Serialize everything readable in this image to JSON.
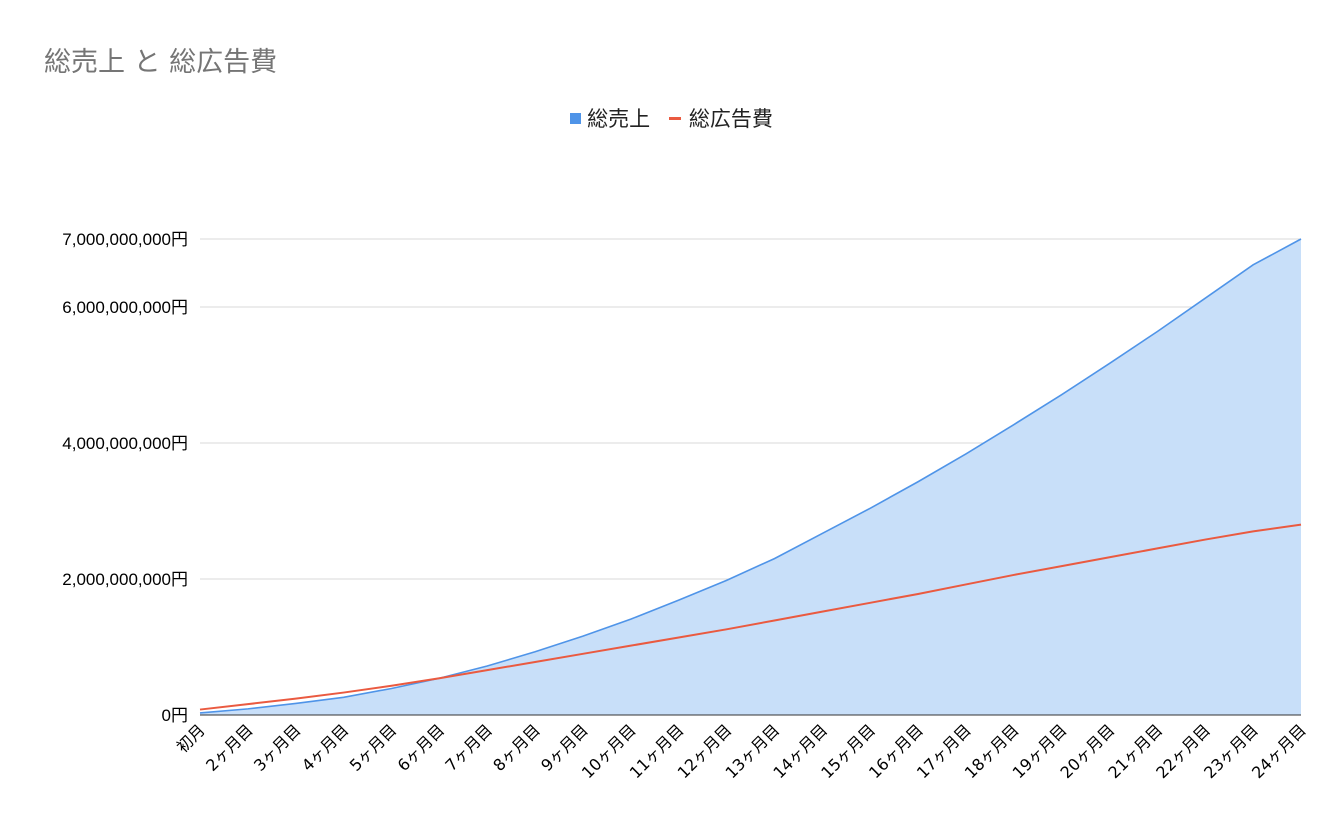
{
  "chart_data": {
    "type": "area",
    "title": "総売上 と 総広告費",
    "xlabel": "",
    "ylabel": "",
    "categories": [
      "初月",
      "2ヶ月目",
      "3ヶ月目",
      "4ヶ月目",
      "5ヶ月目",
      "6ヶ月目",
      "7ヶ月目",
      "8ヶ月目",
      "9ヶ月目",
      "10ヶ月目",
      "11ヶ月目",
      "12ヶ月目",
      "13ヶ月目",
      "14ヶ月目",
      "15ヶ月目",
      "16ヶ月目",
      "17ヶ月目",
      "18ヶ月目",
      "19ヶ月目",
      "20ヶ月目",
      "21ヶ月目",
      "22ヶ月目",
      "23ヶ月目",
      "24ヶ月目"
    ],
    "series": [
      {
        "name": "総売上",
        "type": "area",
        "color": "#4f94e8",
        "fill": "#c8dff9",
        "values": [
          30000000,
          90000000,
          170000000,
          260000000,
          390000000,
          540000000,
          720000000,
          930000000,
          1160000000,
          1410000000,
          1690000000,
          1980000000,
          2300000000,
          2670000000,
          3040000000,
          3430000000,
          3840000000,
          4270000000,
          4710000000,
          5170000000,
          5640000000,
          6130000000,
          6620000000,
          7000000000
        ]
      },
      {
        "name": "総広告費",
        "type": "line",
        "color": "#ea5a40",
        "values": [
          80000000,
          160000000,
          240000000,
          330000000,
          430000000,
          540000000,
          660000000,
          780000000,
          900000000,
          1020000000,
          1140000000,
          1260000000,
          1390000000,
          1520000000,
          1650000000,
          1780000000,
          1920000000,
          2060000000,
          2190000000,
          2320000000,
          2450000000,
          2580000000,
          2700000000,
          2800000000
        ]
      }
    ],
    "yticks": [
      {
        "value": 0,
        "label": "0円"
      },
      {
        "value": 2000000000,
        "label": "2,000,000,000円"
      },
      {
        "value": 4000000000,
        "label": "4,000,000,000円"
      },
      {
        "value": 6000000000,
        "label": "6,000,000,000円"
      },
      {
        "value": 7000000000,
        "label": "7,000,000,000円"
      }
    ],
    "ylim": [
      0,
      7000000000
    ],
    "grid": true,
    "legend_position": "top-center"
  }
}
